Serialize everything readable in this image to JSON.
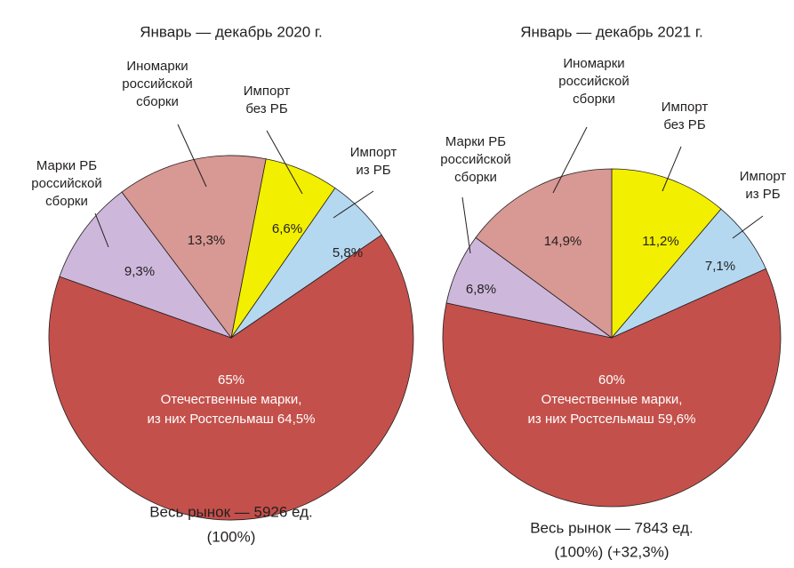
{
  "chart_data": [
    {
      "type": "pie",
      "title": "Январь — декабрь 2020 г.",
      "labels": [
        [
          "Импорт",
          "без РБ"
        ],
        [
          "Импорт",
          "из РБ"
        ],
        [
          "Отечественные марки,",
          "из них Ростсельмаш 64,5%"
        ],
        [
          "Марки РБ",
          "российской",
          "сборки"
        ],
        [
          "Иномарки",
          "российской",
          "сборки"
        ]
      ],
      "values": [
        6.6,
        5.8,
        65,
        9.3,
        13.3
      ],
      "value_labels": [
        "6,6%",
        "5,8%",
        "65%",
        "9,3%",
        "13,3%"
      ],
      "colors": [
        "#f2ef00",
        "#b4d8f0",
        "#c4504b",
        "#cdb8dc",
        "#d89893"
      ],
      "footnote": [
        "Весь рынок — 5926 ед.",
        "(100%)"
      ]
    },
    {
      "type": "pie",
      "title": "Январь — декабрь 2021 г.",
      "labels": [
        [
          "Импорт",
          "без РБ"
        ],
        [
          "Импорт",
          "из РБ"
        ],
        [
          "Отечественные марки,",
          "из них Ростсельмаш 59,6%"
        ],
        [
          "Марки РБ",
          "российской",
          "сборки"
        ],
        [
          "Иномарки",
          "российской",
          "сборки"
        ]
      ],
      "values": [
        11.2,
        7.1,
        60,
        6.8,
        14.9
      ],
      "value_labels": [
        "11,2%",
        "7,1%",
        "60%",
        "6,8%",
        "14,9%"
      ],
      "colors": [
        "#f2ef00",
        "#b4d8f0",
        "#c4504b",
        "#cdb8dc",
        "#d89893"
      ],
      "footnote": [
        "Весь рынок — 7843 ед.",
        "(100%) (+32,3%)"
      ]
    }
  ]
}
